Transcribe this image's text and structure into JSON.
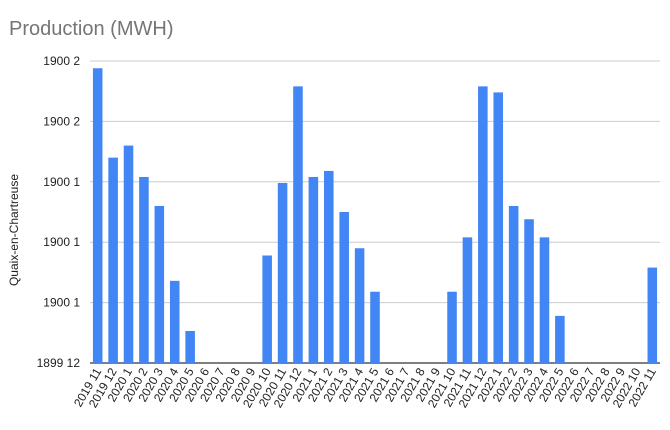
{
  "chart_data": {
    "type": "bar",
    "title": "Production (MWH)",
    "xlabel": "",
    "ylabel": "Quaix-en-Chartreuse",
    "ytick_labels": [
      "1899 12",
      "1900 1",
      "1900 1",
      "1900 1",
      "1900 2",
      "1900 2"
    ],
    "ylim": [
      0,
      5
    ],
    "grid": true,
    "legend": "none",
    "bar_color": "#4285f4",
    "categories": [
      "2019 11",
      "2019 12",
      "2020 1",
      "2020 2",
      "2020 3",
      "2020 4",
      "2020 5",
      "2020 6",
      "2020 7",
      "2020 8",
      "2020 9",
      "2020 10",
      "2020 11",
      "2020 12",
      "2021 1",
      "2021 2",
      "2021 3",
      "2021 4",
      "2021 5",
      "2021 6",
      "2021 7",
      "2021 8",
      "2021 9",
      "2021 10",
      "2021 11",
      "2021 12",
      "2022 1",
      "2022 2",
      "2022 3",
      "2022 4",
      "2022 5",
      "2022 6",
      "2022 7",
      "2022 8",
      "2022 9",
      "2022 10",
      "2022 11"
    ],
    "values": [
      4.88,
      3.4,
      3.6,
      3.08,
      2.6,
      1.36,
      0.53,
      0,
      0,
      0,
      0,
      1.78,
      2.98,
      4.58,
      3.08,
      3.18,
      2.5,
      1.9,
      1.18,
      0,
      0,
      0,
      0,
      1.18,
      2.08,
      4.58,
      4.48,
      2.6,
      2.38,
      2.08,
      0.78,
      0,
      0,
      0,
      0,
      0,
      1.58
    ]
  }
}
